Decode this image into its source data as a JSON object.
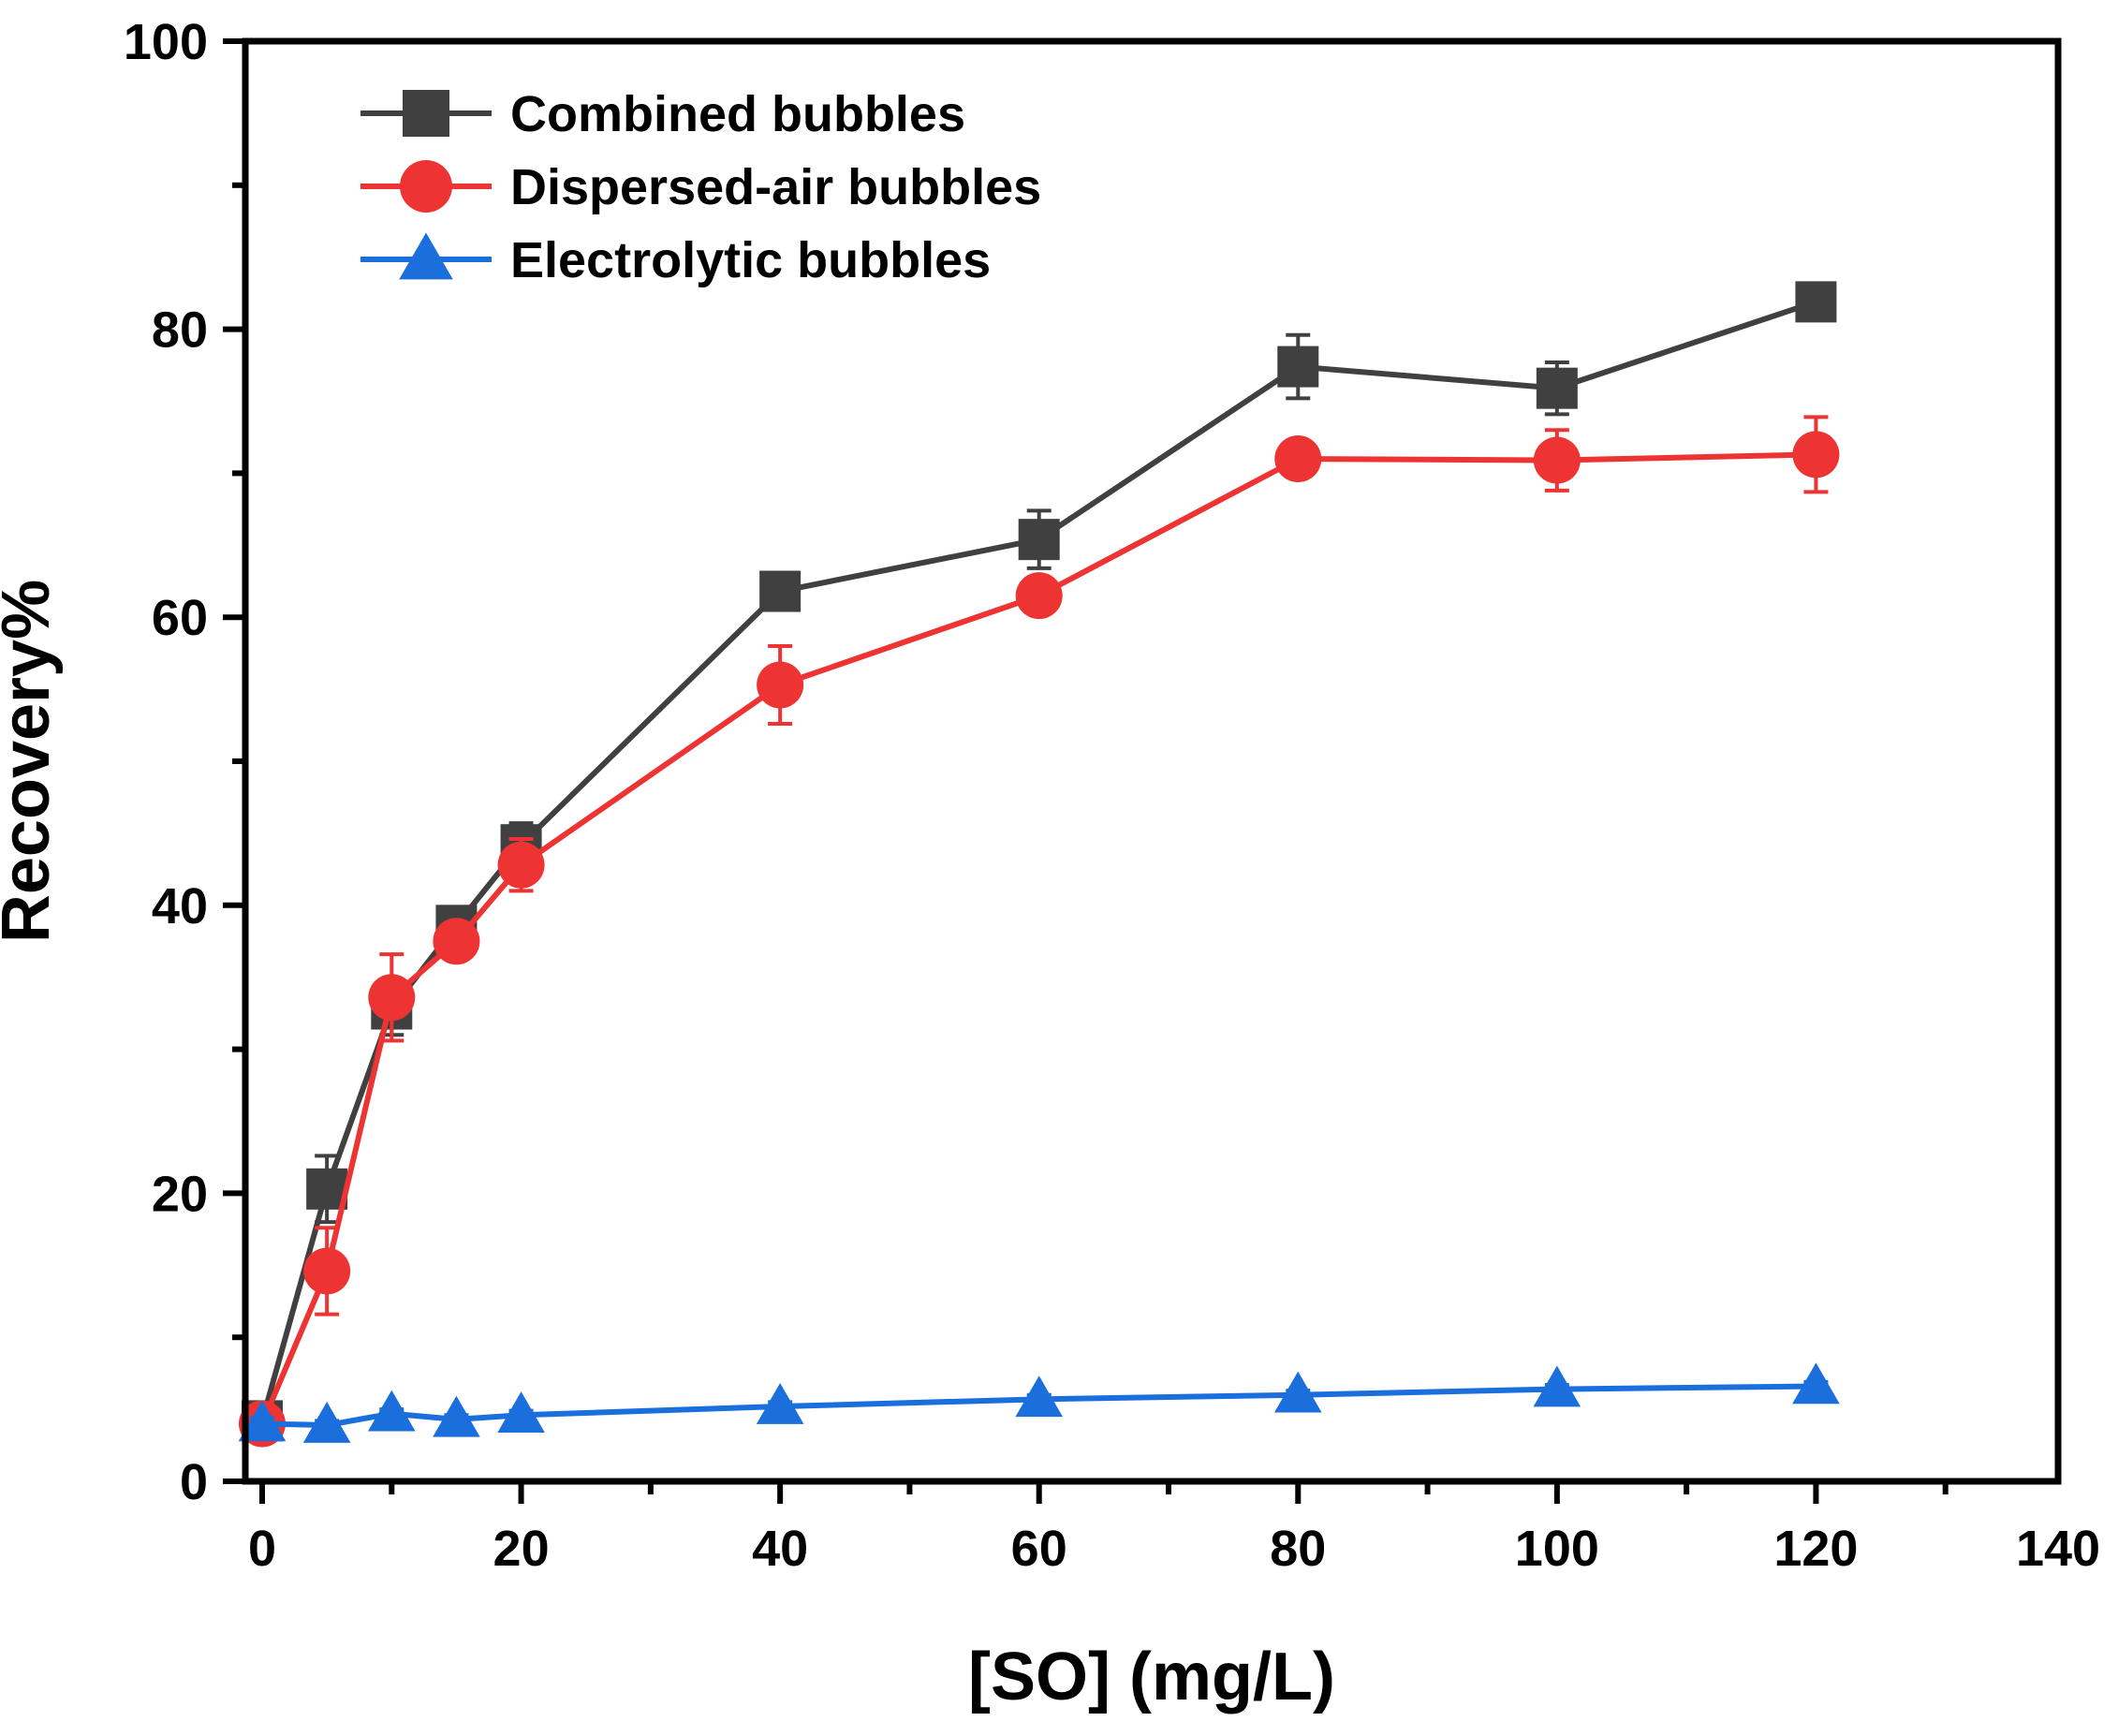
{
  "chart_data": {
    "type": "line",
    "title": "",
    "xlabel": "[SO] (mg/L)",
    "ylabel": "Recovery%",
    "xlim": [
      0,
      140
    ],
    "ylim": [
      0,
      100
    ],
    "xticks": [
      0,
      20,
      40,
      60,
      80,
      100,
      120,
      140
    ],
    "yticks": [
      0,
      20,
      40,
      60,
      80,
      100
    ],
    "xtick_labels": [
      "0",
      "20",
      "40",
      "60",
      "80",
      "100",
      "120",
      "140"
    ],
    "ytick_labels": [
      "0",
      "20",
      "40",
      "60",
      "80",
      "100"
    ],
    "grid": false,
    "legend_position": "top-left",
    "x": [
      0,
      5,
      10,
      15,
      20,
      40,
      60,
      80,
      100,
      120
    ],
    "series": [
      {
        "name": "Combined bubbles",
        "color": "#404040",
        "marker": "square",
        "values": [
          4.2,
          20.3,
          32.8,
          38.6,
          44.2,
          61.8,
          65.4,
          77.4,
          75.9,
          81.9
        ],
        "errors": [
          0.6,
          2.3,
          1.8,
          1.0,
          1.5,
          0.6,
          2.0,
          2.2,
          1.8,
          0.5
        ]
      },
      {
        "name": "Dispersed-air bubbles",
        "color": "#ee3333",
        "marker": "circle",
        "values": [
          4.0,
          14.6,
          33.6,
          37.5,
          42.8,
          55.3,
          61.5,
          71.0,
          70.9,
          71.3
        ],
        "errors": [
          0.8,
          3.0,
          3.0,
          0.6,
          1.8,
          2.7,
          1.2,
          0.4,
          2.1,
          2.6
        ]
      },
      {
        "name": "Electrolytic bubbles",
        "color": "#1a6fdc",
        "marker": "triangle",
        "values": [
          4.0,
          3.9,
          4.7,
          4.3,
          4.6,
          5.2,
          5.7,
          6.0,
          6.4,
          6.6
        ],
        "errors": [
          0.4,
          0.3,
          0.3,
          0.3,
          0.3,
          0.3,
          0.3,
          0.3,
          0.3,
          0.3
        ]
      }
    ]
  }
}
